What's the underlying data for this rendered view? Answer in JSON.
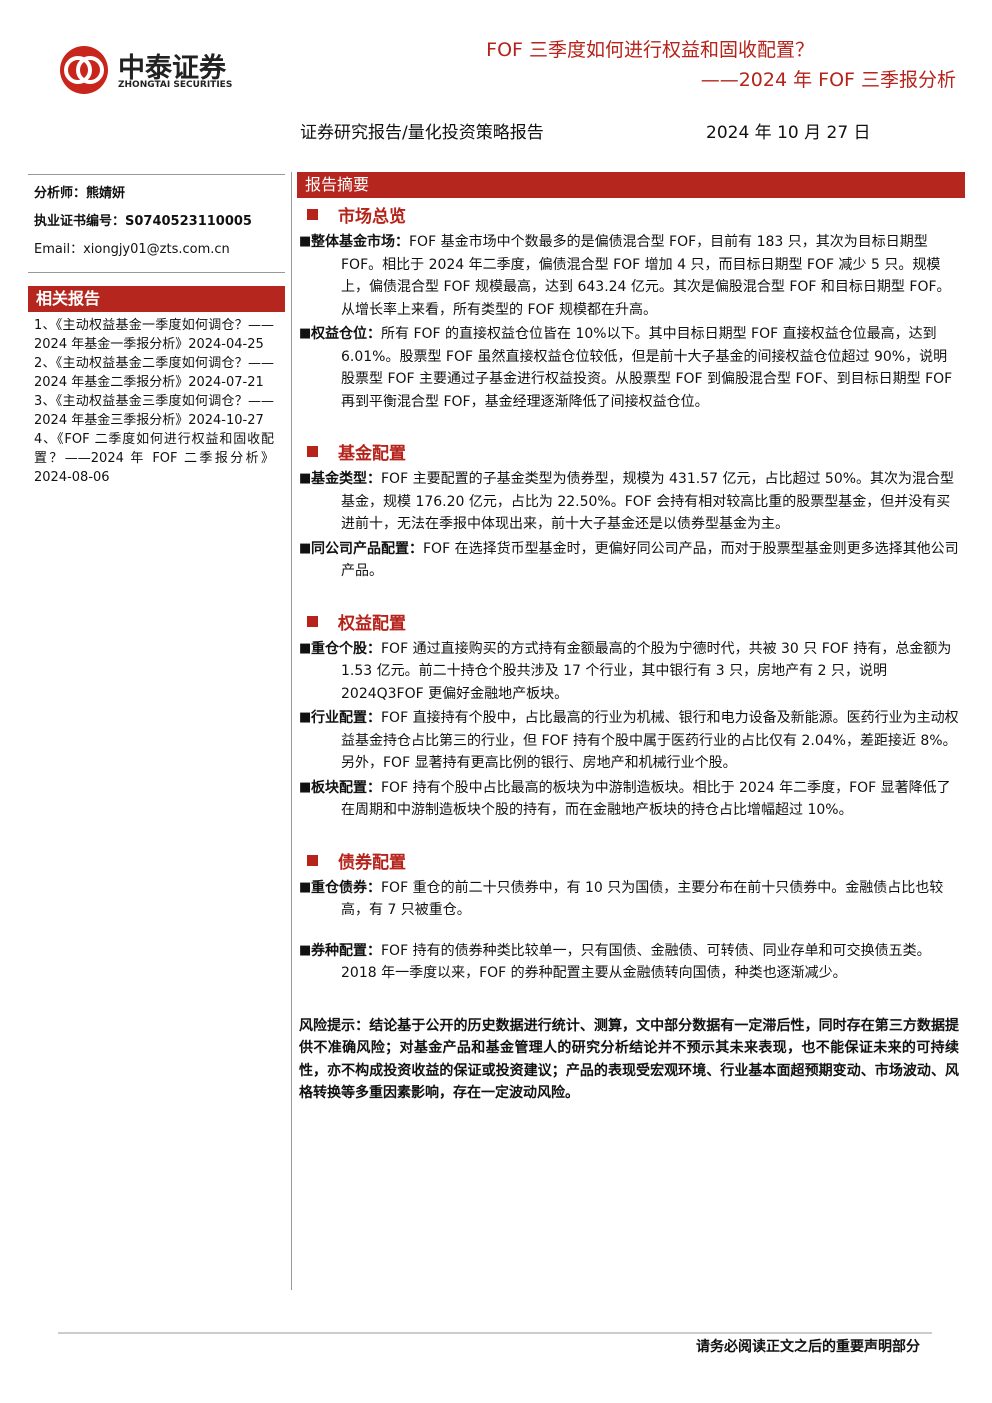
{
  "header": {
    "logo_cn": "中泰证券",
    "logo_en": "ZHONGTAI SECURITIES",
    "title": "FOF 三季度如何进行权益和固收配置？",
    "subtitle": "——2024 年 FOF 三季报分析",
    "report_type": "证券研究报告/量化投资策略报告",
    "date": "2024 年 10 月 27 日"
  },
  "sidebar": {
    "analyst_label": "分析师：",
    "analyst": "熊婧妍",
    "cert_label": "执业证书编号：",
    "cert": "S0740523110005",
    "email": "Email：xiongjy01@zts.com.cn",
    "related_title": "相关报告",
    "related": [
      "1、《主动权益基金一季度如何调仓？——2024 年基金一季报分析》2024-04-25",
      "2、《主动权益基金二季度如何调仓？——2024 年基金二季报分析》2024-07-21",
      "3、《主动权益基金三季度如何调仓？——2024 年基金三季报分析》2024-10-27",
      "4、《FOF 二季度如何进行权益和固收配置？——2024 年 FOF 二季报分析》2024-08-06"
    ]
  },
  "main": {
    "summary_title": "报告摘要",
    "sections": [
      {
        "heading": "市场总览",
        "items": [
          {
            "label": "整体基金市场：",
            "text": "FOF 基金市场中个数最多的是偏债混合型 FOF，目前有 183 只，其次为目标日期型 FOF。相比于 2024 年二季度，偏债混合型 FOF 增加 4 只，而目标日期型 FOF 减少 5 只。规模上，偏债混合型 FOF 规模最高，达到 643.24 亿元。其次是偏股混合型 FOF 和目标日期型 FOF。从增长率上来看，所有类型的 FOF 规模都在升高。"
          },
          {
            "label": "权益仓位：",
            "text": "所有 FOF 的直接权益仓位皆在 10%以下。其中目标日期型 FOF 直接权益仓位最高，达到 6.01%。股票型 FOF 虽然直接权益仓位较低，但是前十大子基金的间接权益仓位超过 90%，说明股票型 FOF 主要通过子基金进行权益投资。从股票型 FOF 到偏股混合型 FOF、到目标日期型 FOF 再到平衡混合型 FOF，基金经理逐渐降低了间接权益仓位。"
          }
        ]
      },
      {
        "heading": "基金配置",
        "items": [
          {
            "label": "基金类型：",
            "text": "FOF 主要配置的子基金类型为债券型，规模为 431.57 亿元，占比超过 50%。其次为混合型基金，规模 176.20 亿元，占比为 22.50%。FOF 会持有相对较高比重的股票型基金，但并没有买进前十，无法在季报中体现出来，前十大子基金还是以债券型基金为主。"
          },
          {
            "label": "同公司产品配置：",
            "text": "FOF 在选择货币型基金时，更偏好同公司产品，而对于股票型基金则更多选择其他公司产品。"
          }
        ]
      },
      {
        "heading": "权益配置",
        "items": [
          {
            "label": "重仓个股：",
            "text": "FOF 通过直接购买的方式持有金额最高的个股为宁德时代，共被 30 只 FOF 持有，总金额为 1.53 亿元。前二十持仓个股共涉及 17 个行业，其中银行有 3 只，房地产有 2 只，说明 2024Q3FOF 更偏好金融地产板块。"
          },
          {
            "label": "行业配置：",
            "text": "FOF 直接持有个股中，占比最高的行业为机械、银行和电力设备及新能源。医药行业为主动权益基金持仓占比第三的行业，但 FOF 持有个股中属于医药行业的占比仅有 2.04%，差距接近 8%。另外，FOF 显著持有更高比例的银行、房地产和机械行业个股。"
          },
          {
            "label": "板块配置：",
            "text": "FOF 持有个股中占比最高的板块为中游制造板块。相比于 2024 年二季度，FOF 显著降低了在周期和中游制造板块个股的持有，而在金融地产板块的持仓占比增幅超过 10%。"
          }
        ]
      },
      {
        "heading": "债券配置",
        "items": [
          {
            "label": "重仓债券：",
            "text": "FOF 重仓的前二十只债券中，有 10 只为国债，主要分布在前十只债券中。金融债占比也较高，有 7 只被重仓。"
          },
          {
            "label": "券种配置：",
            "text": "FOF 持有的债券种类比较单一，只有国债、金融债、可转债、同业存单和可交换债五类。2018 年一季度以来，FOF 的券种配置主要从金融债转向国债，种类也逐渐减少。"
          }
        ]
      }
    ],
    "risk_label": "风险提示：",
    "risk_text": "结论基于公开的历史数据进行统计、测算，文中部分数据有一定滞后性，同时存在第三方数据提供不准确风险；对基金产品和基金管理人的研究分析结论并不预示其未来表现，也不能保证未来的可持续性，亦不构成投资收益的保证或投资建议；产品的表现受宏观环境、行业基本面超预期变动、市场波动、风格转换等多重因素影响，存在一定波动风险。"
  },
  "footer": {
    "notice": "请务必阅读正文之后的重要声明部分"
  }
}
